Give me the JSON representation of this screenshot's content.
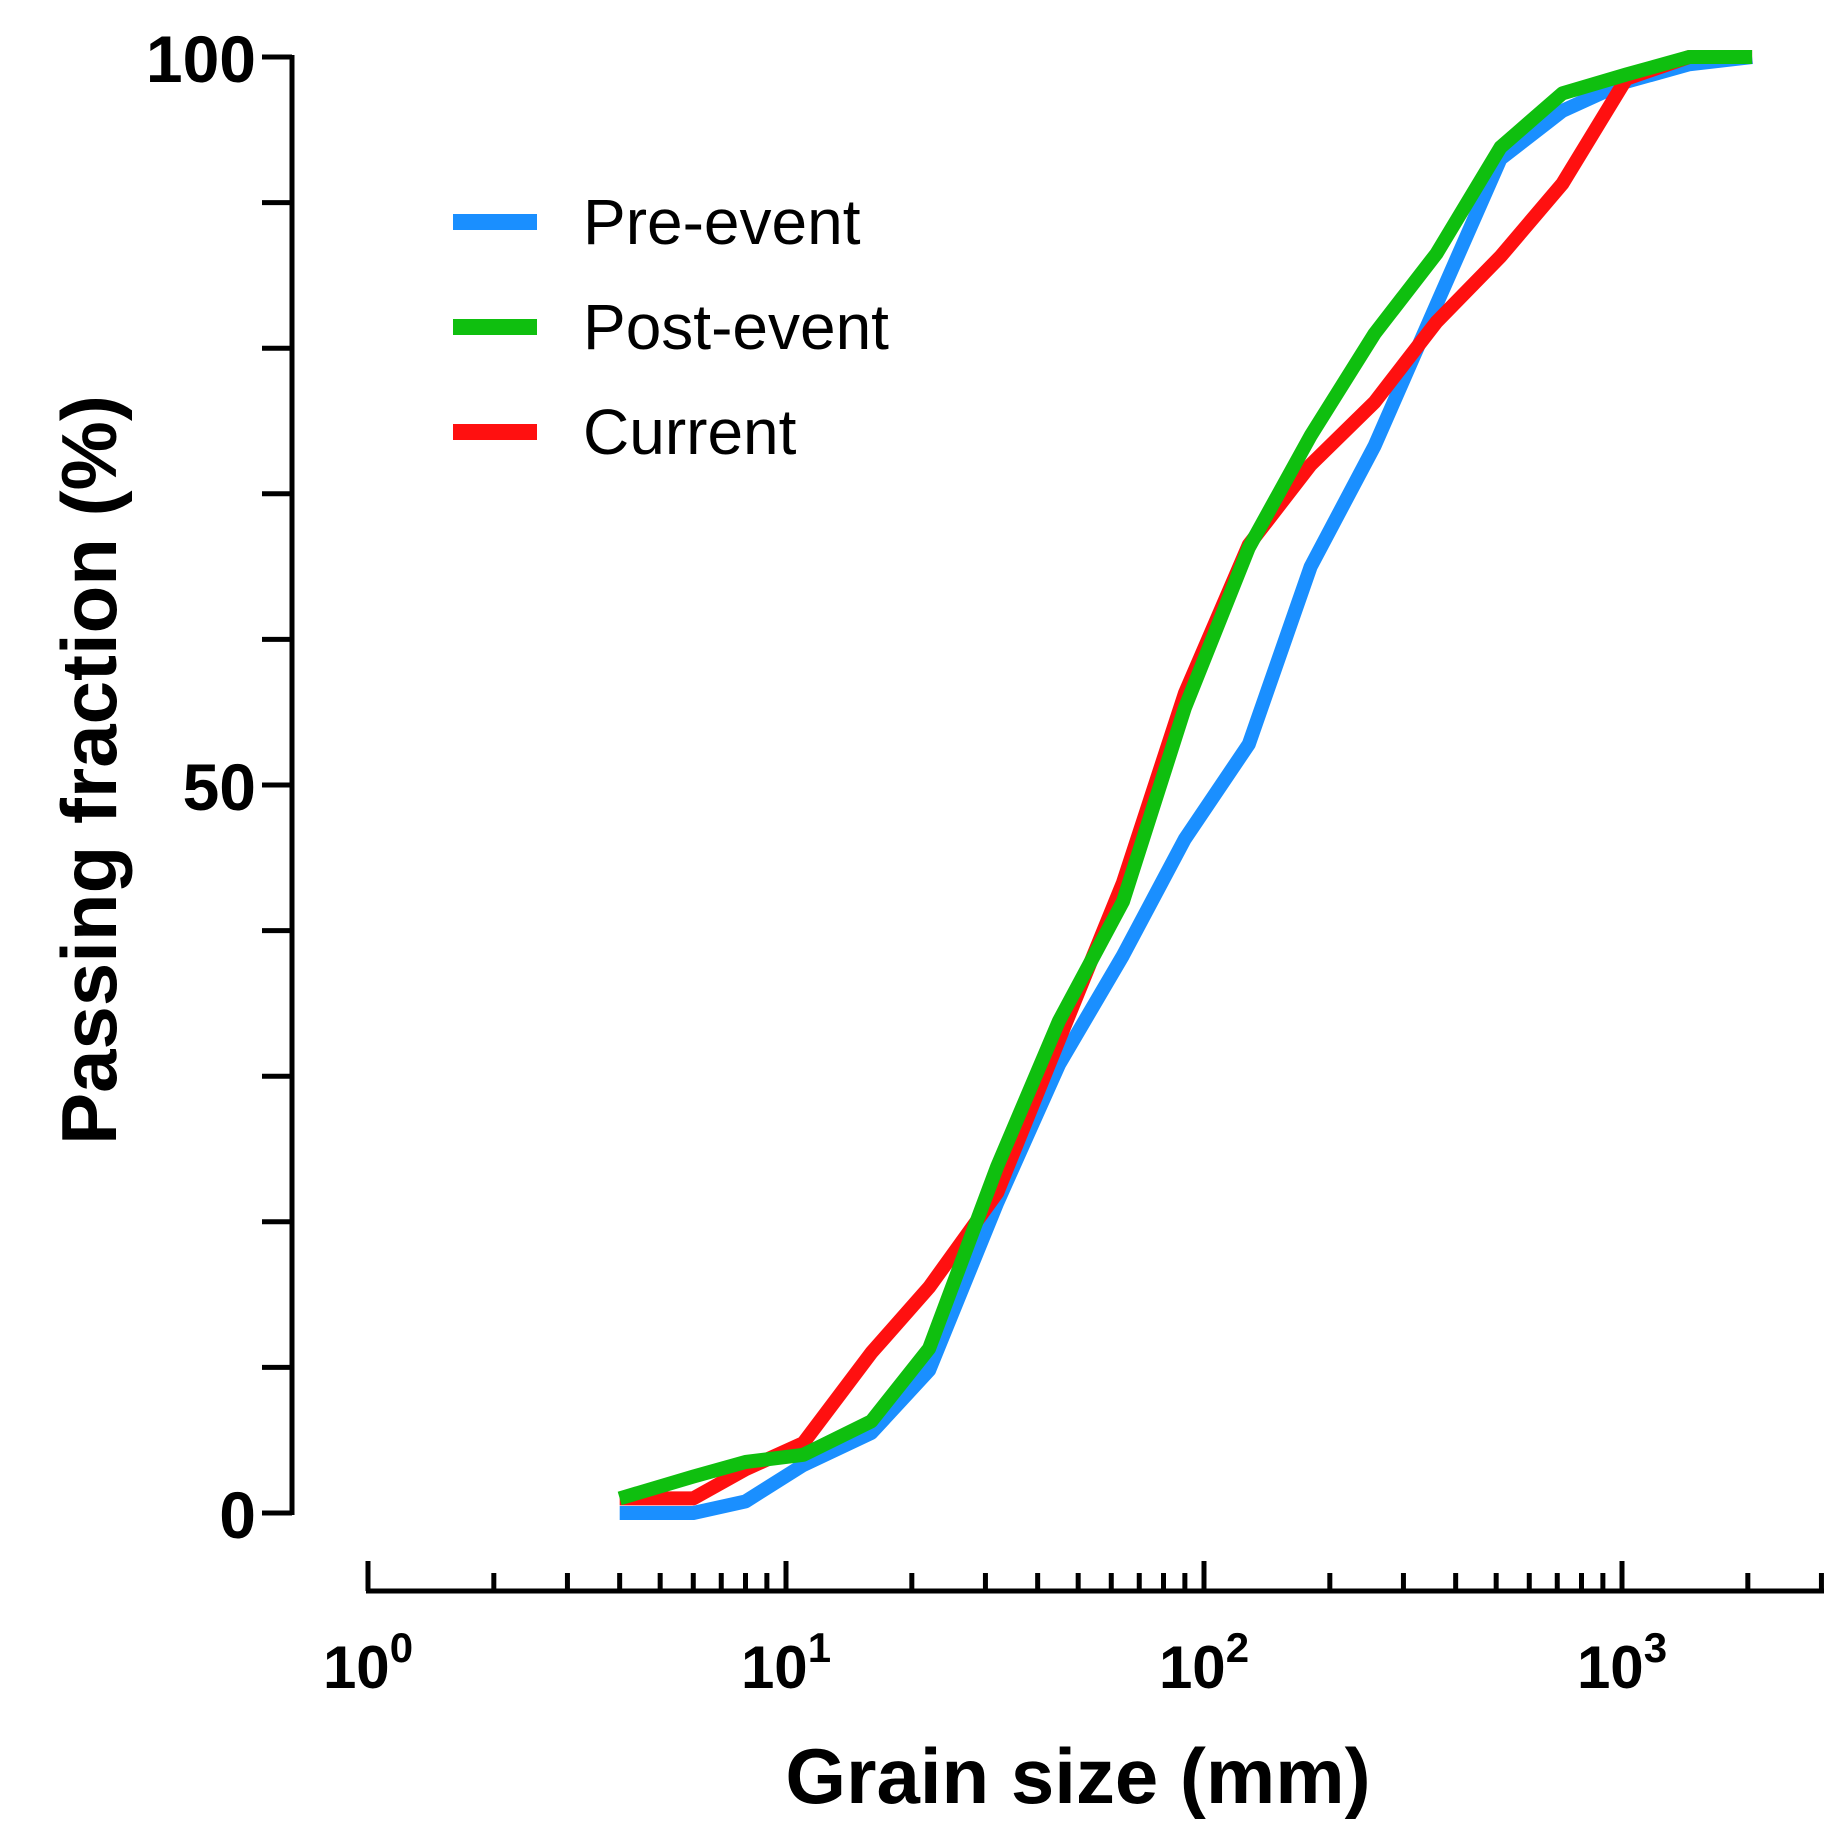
{
  "chart_data": {
    "type": "line",
    "title": "",
    "xlabel": "Grain size (mm)",
    "ylabel": "Passing fraction (%)",
    "xscale": "log",
    "xlim": [
      1,
      3000
    ],
    "ylim": [
      0,
      100
    ],
    "x_ticks": [
      {
        "base": "10",
        "exp": "0"
      },
      {
        "base": "10",
        "exp": "1"
      },
      {
        "base": "10",
        "exp": "2"
      },
      {
        "base": "10",
        "exp": "3"
      }
    ],
    "y_ticks": [
      "0",
      "50",
      "100"
    ],
    "grid": false,
    "legend_position": "top-left",
    "series": [
      {
        "name": "Pre-event",
        "color": "#1a8fff",
        "x": [
          4,
          6,
          8,
          11,
          16,
          22,
          32,
          45,
          64,
          90,
          128,
          180,
          256,
          360,
          512,
          720,
          1024,
          1448,
          2048
        ],
        "y": [
          0,
          0,
          0.8,
          3.3,
          5.5,
          9.8,
          21.3,
          30.8,
          38.3,
          46.3,
          52.8,
          65,
          73.3,
          83,
          93,
          96.3,
          98.3,
          99.5,
          100
        ]
      },
      {
        "name": "Post-event",
        "color": "#0fbf0f",
        "x": [
          4,
          6,
          8,
          11,
          16,
          22,
          32,
          45,
          64,
          90,
          128,
          180,
          256,
          360,
          512,
          720,
          1024,
          1448,
          2048
        ],
        "y": [
          1,
          2.5,
          3.5,
          4,
          6.3,
          11.3,
          23.8,
          33.8,
          42,
          55.3,
          66.3,
          74,
          81,
          86.5,
          93.8,
          97.5,
          98.8,
          100,
          100
        ]
      },
      {
        "name": "Current",
        "color": "#ff1010",
        "x": [
          4,
          6,
          8,
          11,
          16,
          22,
          32,
          45,
          64,
          90,
          128,
          180,
          256,
          360,
          512,
          720,
          1024,
          1448,
          2048
        ],
        "y": [
          1,
          1,
          3,
          4.8,
          11,
          15.5,
          22,
          32.5,
          43.3,
          56.3,
          66.5,
          72,
          76.3,
          81.8,
          86.3,
          91.3,
          98.5,
          100,
          100
        ]
      }
    ]
  }
}
